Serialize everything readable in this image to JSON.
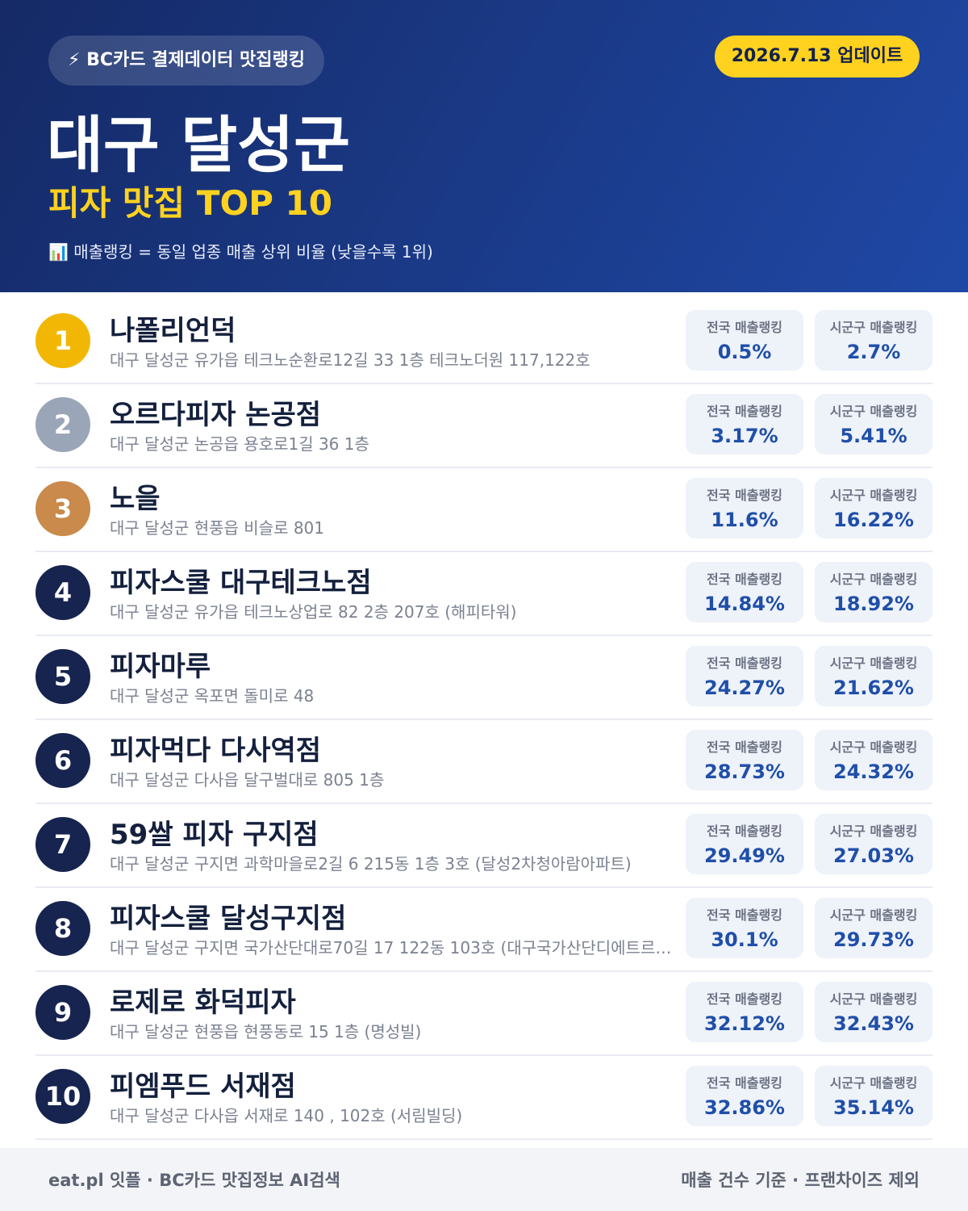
{
  "header": {
    "badge": "⚡ BC카드 결제데이터 맛집랭킹",
    "update": "2026.7.13 업데이트",
    "title": "대구 달성군",
    "subtitle": "피자 맛집 TOP 10",
    "note": "📊 매출랭킹 = 동일 업종 매출 상위 비율 (낮을수록 1위)"
  },
  "labels": {
    "national": "전국 매출랭킹",
    "local": "시군구 매출랭킹"
  },
  "items": [
    {
      "rank": "1",
      "name": "나폴리언덕",
      "address": "대구 달성군 유가읍 테크노순환로12길 33 1층 테크노더원 117,122호",
      "national": "0.5%",
      "local": "2.7%"
    },
    {
      "rank": "2",
      "name": "오르다피자 논공점",
      "address": "대구 달성군 논공읍 용호로1길 36 1층",
      "national": "3.17%",
      "local": "5.41%"
    },
    {
      "rank": "3",
      "name": "노을",
      "address": "대구 달성군 현풍읍 비슬로 801",
      "national": "11.6%",
      "local": "16.22%"
    },
    {
      "rank": "4",
      "name": "피자스쿨 대구테크노점",
      "address": "대구 달성군 유가읍 테크노상업로 82 2층 207호 (해피타워)",
      "national": "14.84%",
      "local": "18.92%"
    },
    {
      "rank": "5",
      "name": "피자마루",
      "address": "대구 달성군 옥포면 돌미로 48",
      "national": "24.27%",
      "local": "21.62%"
    },
    {
      "rank": "6",
      "name": "피자먹다 다사역점",
      "address": "대구 달성군 다사읍 달구벌대로 805 1층",
      "national": "28.73%",
      "local": "24.32%"
    },
    {
      "rank": "7",
      "name": "59쌀 피자 구지점",
      "address": "대구 달성군 구지면 과학마을로2길 6 215동 1층 3호 (달성2차청아람아파트)",
      "national": "29.49%",
      "local": "27.03%"
    },
    {
      "rank": "8",
      "name": "피자스쿨 달성구지점",
      "address": "대구 달성군 구지면 국가산단대로70길 17 122동 103호 (대구국가산단디에트르…",
      "national": "30.1%",
      "local": "29.73%"
    },
    {
      "rank": "9",
      "name": "로제로 화덕피자",
      "address": "대구 달성군 현풍읍 현풍동로 15 1층 (명성빌)",
      "national": "32.12%",
      "local": "32.43%"
    },
    {
      "rank": "10",
      "name": "피엠푸드 서재점",
      "address": "대구 달성군 다사읍 서재로 140 , 102호 (서림빌딩)",
      "national": "32.86%",
      "local": "35.14%"
    }
  ],
  "footer": {
    "left": "eat.pl 잇플 · BC카드 맛집정보 AI검색",
    "right": "매출 건수 기준 · 프랜차이즈 제외"
  }
}
